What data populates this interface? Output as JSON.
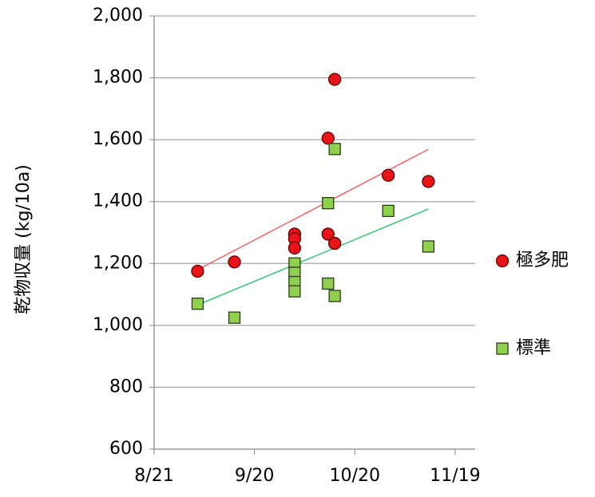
{
  "chart_data": {
    "type": "scatter",
    "ylabel": "乾物収量 (kg/10a)",
    "xlim": [
      "8/21",
      "11/25"
    ],
    "xticks": [
      "8/21",
      "9/20",
      "10/20",
      "11/19"
    ],
    "ylim": [
      600,
      2000
    ],
    "yticks": [
      600,
      800,
      {
        "value": 1000,
        "label": "1,000"
      },
      {
        "value": 1200,
        "label": "1,200"
      },
      {
        "value": 1400,
        "label": "1,400"
      },
      {
        "value": 1600,
        "label": "1,600"
      },
      {
        "value": 1800,
        "label": "1,800"
      },
      {
        "value": 2000,
        "label": "2,000"
      }
    ],
    "grid": true,
    "legend": "right",
    "series": [
      {
        "name": "極多肥",
        "color": "#e8141a",
        "marker": "circle",
        "x": [
          "9/3",
          "9/14",
          "10/2",
          "10/2",
          "10/2",
          "10/12",
          "10/14",
          "10/12",
          "10/14",
          "10/30",
          "11/11"
        ],
        "values": [
          1175,
          1205,
          1295,
          1280,
          1250,
          1605,
          1795,
          1295,
          1265,
          1485,
          1465
        ],
        "trend": {
          "color": "#f46a6a",
          "x": [
            "9/3",
            "11/11"
          ],
          "values": [
            1180,
            1569
          ]
        }
      },
      {
        "name": "標準",
        "color": "#8fd14f",
        "marker": "square",
        "x": [
          "9/3",
          "9/14",
          "10/2",
          "10/2",
          "10/2",
          "10/2",
          "10/12",
          "10/14",
          "10/12",
          "10/14",
          "10/30",
          "11/11"
        ],
        "values": [
          1070,
          1025,
          1200,
          1170,
          1140,
          1110,
          1395,
          1570,
          1135,
          1095,
          1370,
          1255
        ],
        "trend": {
          "color": "#3cc878",
          "x": [
            "9/3",
            "11/11"
          ],
          "values": [
            1066,
            1376
          ]
        }
      }
    ]
  }
}
